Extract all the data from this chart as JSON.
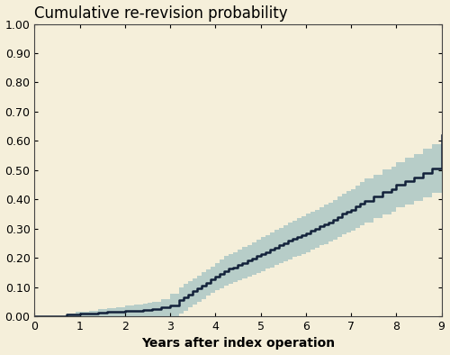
{
  "title": "Cumulative re-revision probability",
  "xlabel": "Years after index operation",
  "xlim": [
    0,
    9
  ],
  "ylim": [
    0,
    1.0
  ],
  "xticks": [
    0,
    1,
    2,
    3,
    4,
    5,
    6,
    7,
    8,
    9
  ],
  "yticks": [
    0.0,
    0.1,
    0.2,
    0.3,
    0.4,
    0.5,
    0.6,
    0.7,
    0.8,
    0.9,
    1.0
  ],
  "background_color": "#F5EFDA",
  "ci_color": "#7AADB8",
  "ci_alpha": 0.5,
  "line_color": "#12213A",
  "line_width": 1.8,
  "curve_x": [
    0.0,
    0.1,
    0.3,
    0.5,
    0.7,
    0.9,
    1.0,
    1.2,
    1.4,
    1.6,
    1.8,
    2.0,
    2.2,
    2.4,
    2.5,
    2.6,
    2.8,
    3.0,
    3.2,
    3.3,
    3.4,
    3.5,
    3.6,
    3.7,
    3.8,
    3.9,
    4.0,
    4.1,
    4.2,
    4.3,
    4.4,
    4.5,
    4.6,
    4.7,
    4.8,
    4.9,
    5.0,
    5.1,
    5.2,
    5.3,
    5.4,
    5.5,
    5.6,
    5.7,
    5.8,
    5.9,
    6.0,
    6.1,
    6.2,
    6.3,
    6.4,
    6.5,
    6.6,
    6.7,
    6.8,
    6.9,
    7.0,
    7.1,
    7.2,
    7.3,
    7.5,
    7.7,
    7.9,
    8.0,
    8.2,
    8.4,
    8.6,
    8.8,
    9.0
  ],
  "curve_y": [
    0.0,
    0.0,
    0.0,
    0.0,
    0.005,
    0.007,
    0.008,
    0.01,
    0.012,
    0.014,
    0.016,
    0.018,
    0.02,
    0.022,
    0.023,
    0.025,
    0.03,
    0.038,
    0.055,
    0.065,
    0.075,
    0.085,
    0.095,
    0.105,
    0.115,
    0.125,
    0.135,
    0.145,
    0.155,
    0.162,
    0.168,
    0.175,
    0.182,
    0.19,
    0.198,
    0.205,
    0.213,
    0.22,
    0.228,
    0.235,
    0.242,
    0.25,
    0.258,
    0.265,
    0.272,
    0.278,
    0.285,
    0.293,
    0.3,
    0.308,
    0.315,
    0.322,
    0.33,
    0.34,
    0.35,
    0.358,
    0.365,
    0.375,
    0.385,
    0.395,
    0.41,
    0.425,
    0.435,
    0.45,
    0.462,
    0.475,
    0.49,
    0.505,
    0.62
  ],
  "ci_lower": [
    0.0,
    0.0,
    0.0,
    0.0,
    0.0,
    0.0,
    0.0,
    0.0,
    0.0,
    0.0,
    0.0,
    0.0,
    0.0,
    0.0,
    0.0,
    0.0,
    0.0,
    0.0,
    0.01,
    0.02,
    0.03,
    0.04,
    0.05,
    0.06,
    0.07,
    0.08,
    0.088,
    0.096,
    0.104,
    0.11,
    0.116,
    0.122,
    0.128,
    0.135,
    0.142,
    0.148,
    0.155,
    0.162,
    0.168,
    0.175,
    0.181,
    0.188,
    0.195,
    0.202,
    0.208,
    0.214,
    0.22,
    0.228,
    0.235,
    0.242,
    0.248,
    0.255,
    0.262,
    0.27,
    0.28,
    0.287,
    0.294,
    0.302,
    0.312,
    0.32,
    0.335,
    0.348,
    0.358,
    0.372,
    0.382,
    0.395,
    0.408,
    0.422,
    0.478
  ],
  "ci_upper": [
    0.0,
    0.0,
    0.0,
    0.0,
    0.01,
    0.014,
    0.016,
    0.02,
    0.024,
    0.028,
    0.032,
    0.036,
    0.04,
    0.044,
    0.046,
    0.05,
    0.06,
    0.076,
    0.1,
    0.11,
    0.12,
    0.13,
    0.14,
    0.15,
    0.16,
    0.17,
    0.182,
    0.194,
    0.206,
    0.214,
    0.22,
    0.228,
    0.236,
    0.245,
    0.254,
    0.262,
    0.271,
    0.278,
    0.288,
    0.295,
    0.303,
    0.312,
    0.321,
    0.328,
    0.336,
    0.342,
    0.35,
    0.358,
    0.365,
    0.374,
    0.382,
    0.389,
    0.398,
    0.41,
    0.42,
    0.429,
    0.436,
    0.448,
    0.458,
    0.47,
    0.485,
    0.502,
    0.512,
    0.528,
    0.542,
    0.555,
    0.572,
    0.588,
    0.72
  ],
  "title_fontsize": 12,
  "tick_fontsize": 9,
  "xlabel_fontsize": 10,
  "xlabel_fontweight": "bold"
}
